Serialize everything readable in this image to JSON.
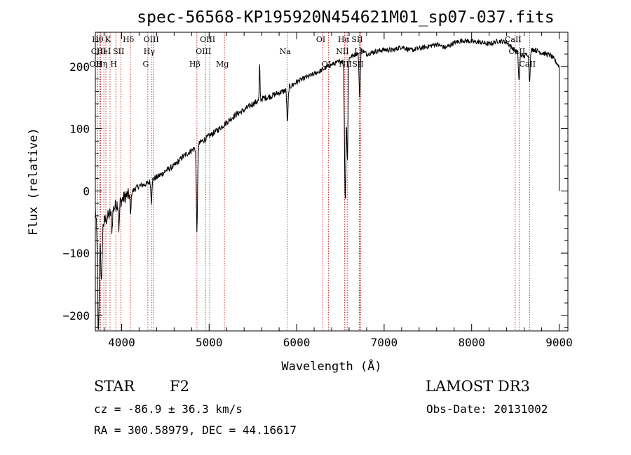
{
  "chart_data": {
    "type": "line",
    "title": "spec-56568-KP195920N454621M01_sp07-037.fits",
    "xlabel": "Wavelength (Å)",
    "ylabel": "Flux (relative)",
    "xlim": [
      3700,
      9100
    ],
    "ylim": [
      -225,
      255
    ],
    "xticks": [
      4000,
      5000,
      6000,
      7000,
      8000,
      9000
    ],
    "yticks": [
      -200,
      -100,
      0,
      100,
      200
    ],
    "spectrum": {
      "x": [
        3700,
        3730,
        3760,
        3800,
        3850,
        3900,
        3950,
        4000,
        4050,
        4100,
        4150,
        4200,
        4250,
        4300,
        4350,
        4400,
        4450,
        4500,
        4600,
        4700,
        4800,
        4850,
        4900,
        4950,
        5000,
        5100,
        5200,
        5300,
        5400,
        5500,
        5600,
        5700,
        5800,
        5850,
        5900,
        5950,
        6000,
        6100,
        6200,
        6300,
        6400,
        6500,
        6550,
        6600,
        6650,
        6700,
        6750,
        6800,
        6900,
        7000,
        7100,
        7200,
        7300,
        7400,
        7500,
        7600,
        7700,
        7800,
        7900,
        8000,
        8100,
        8200,
        8300,
        8400,
        8500,
        8600,
        8700,
        8800,
        8900,
        8950,
        9000
      ],
      "y": [
        -30,
        -85,
        -65,
        -50,
        -40,
        -30,
        -20,
        -15,
        -8,
        -5,
        3,
        8,
        10,
        12,
        18,
        22,
        26,
        32,
        40,
        55,
        65,
        70,
        78,
        83,
        88,
        98,
        110,
        122,
        130,
        140,
        148,
        152,
        158,
        160,
        165,
        170,
        175,
        182,
        188,
        195,
        203,
        208,
        212,
        214,
        218,
        222,
        226,
        220,
        224,
        227,
        226,
        232,
        226,
        229,
        232,
        236,
        230,
        238,
        242,
        240,
        239,
        236,
        241,
        239,
        225,
        216,
        228,
        222,
        218,
        210,
        200
      ],
      "absorption": [
        {
          "x": 3735,
          "depth": 150,
          "width": 12
        },
        {
          "x": 3770,
          "depth": 90,
          "width": 10
        },
        {
          "x": 3890,
          "depth": 30,
          "width": 8
        },
        {
          "x": 3970,
          "depth": 45,
          "width": 8
        },
        {
          "x": 4102,
          "depth": 35,
          "width": 8
        },
        {
          "x": 4340,
          "depth": 35,
          "width": 8
        },
        {
          "x": 4861,
          "depth": 135,
          "width": 10
        },
        {
          "x": 5895,
          "depth": 55,
          "width": 10
        },
        {
          "x": 6555,
          "depth": 225,
          "width": 12
        },
        {
          "x": 6580,
          "depth": 160,
          "width": 10
        },
        {
          "x": 6720,
          "depth": 70,
          "width": 10
        },
        {
          "x": 8542,
          "depth": 45,
          "width": 10
        },
        {
          "x": 8662,
          "depth": 45,
          "width": 10
        }
      ],
      "emission": [
        {
          "x": 5577,
          "height": 55,
          "width": 6
        }
      ]
    },
    "line_markers": [
      {
        "x": 3727,
        "label": "OII",
        "row": 3
      },
      {
        "x": 3750,
        "label": "Hθ",
        "row": 1
      },
      {
        "x": 3760,
        "label": "CIII",
        "row": 2
      },
      {
        "x": 3797,
        "label": "Hη",
        "row": 3
      },
      {
        "x": 3820,
        "label": "HeI",
        "row": 2
      },
      {
        "x": 3868,
        "label": "K",
        "row": 1
      },
      {
        "x": 3934,
        "label": "H",
        "row": 3
      },
      {
        "x": 3990,
        "label": "SII",
        "row": 2
      },
      {
        "x": 4102,
        "label": "Hδ",
        "row": 1
      },
      {
        "x": 4300,
        "label": "G",
        "row": 3
      },
      {
        "x": 4340,
        "label": "Hγ",
        "row": 2
      },
      {
        "x": 4363,
        "label": "OIII",
        "row": 1
      },
      {
        "x": 4861,
        "label": "Hβ",
        "row": 3
      },
      {
        "x": 4959,
        "label": "OIII",
        "row": 2
      },
      {
        "x": 5007,
        "label": "OIII",
        "row": 1
      },
      {
        "x": 5175,
        "label": "Mg",
        "row": 3
      },
      {
        "x": 5893,
        "label": "Na",
        "row": 2
      },
      {
        "x": 6300,
        "label": "OI",
        "row": 1
      },
      {
        "x": 6363,
        "label": "OI",
        "row": 3
      },
      {
        "x": 6548,
        "label": "NII",
        "row": 2
      },
      {
        "x": 6563,
        "label": "Hα",
        "row": 1
      },
      {
        "x": 6583,
        "label": "NII",
        "row": 3
      },
      {
        "x": 6716,
        "label": "SII",
        "row": 1
      },
      {
        "x": 6724,
        "label": "SII",
        "row": 3
      },
      {
        "x": 6730,
        "label": "LI",
        "row": 2
      },
      {
        "x": 8498,
        "label": "CaII",
        "row": 1
      },
      {
        "x": 8542,
        "label": "CaII",
        "row": 2
      },
      {
        "x": 8662,
        "label": "CaII",
        "row": 3
      }
    ]
  },
  "info": {
    "object_class": "STAR",
    "subclass": "F2",
    "survey": "LAMOST DR3",
    "cz": "cz = -86.9 ± 36.3 km/s",
    "obs_date": "Obs-Date: 20131002",
    "coords": "RA = 300.58979, DEC =  44.16617"
  }
}
